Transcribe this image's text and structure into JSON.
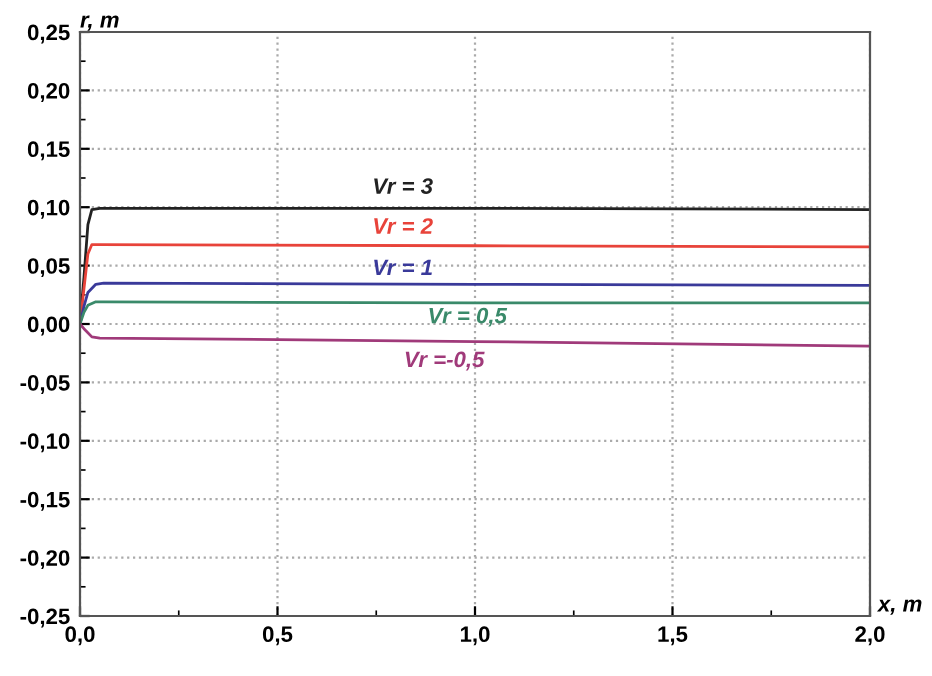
{
  "chart_data": {
    "type": "line",
    "xlabel": "x, m",
    "ylabel": "r, m",
    "xlim": [
      0,
      2
    ],
    "ylim": [
      -0.25,
      0.25
    ],
    "xticks": [
      {
        "value": 0,
        "label": "0,0"
      },
      {
        "value": 0.5,
        "label": "0,5"
      },
      {
        "value": 1,
        "label": "1,0"
      },
      {
        "value": 1.5,
        "label": "1,5"
      },
      {
        "value": 2,
        "label": "2,0"
      }
    ],
    "yticks": [
      {
        "value": -0.25,
        "label": "-0,25"
      },
      {
        "value": -0.2,
        "label": "-0,20"
      },
      {
        "value": -0.15,
        "label": "-0,15"
      },
      {
        "value": -0.1,
        "label": "-0,10"
      },
      {
        "value": -0.05,
        "label": "-0,05"
      },
      {
        "value": 0,
        "label": "0,00"
      },
      {
        "value": 0.05,
        "label": "0,05"
      },
      {
        "value": 0.1,
        "label": "0,10"
      },
      {
        "value": 0.15,
        "label": "0,15"
      },
      {
        "value": 0.2,
        "label": "0,20"
      },
      {
        "value": 0.25,
        "label": "0,25"
      }
    ],
    "grid": true,
    "legend": false,
    "marker": "none",
    "line_style": "solid",
    "series": [
      {
        "name": "Vr = 3",
        "color": "#222222",
        "x": [
          0,
          0.01,
          0.02,
          0.03,
          0.05,
          1,
          2
        ],
        "values": [
          0,
          0.04,
          0.085,
          0.098,
          0.099,
          0.099,
          0.098
        ]
      },
      {
        "name": "Vr = 2",
        "color": "#e8433a",
        "x": [
          0,
          0.01,
          0.02,
          0.03,
          0.05,
          1,
          2
        ],
        "values": [
          0,
          0.03,
          0.06,
          0.068,
          0.068,
          0.067,
          0.066
        ]
      },
      {
        "name": "Vr = 1",
        "color": "#3a3a9a",
        "x": [
          0,
          0.01,
          0.02,
          0.04,
          0.06,
          1,
          2
        ],
        "values": [
          0,
          0.015,
          0.027,
          0.034,
          0.035,
          0.034,
          0.033
        ]
      },
      {
        "name": "Vr = 0,5",
        "color": "#3a8a6a",
        "x": [
          0,
          0.01,
          0.02,
          0.04,
          0.06,
          1,
          2
        ],
        "values": [
          0,
          0.01,
          0.016,
          0.019,
          0.019,
          0.018,
          0.018
        ]
      },
      {
        "name": "Vr =-0,5",
        "color": "#a03a7a",
        "x": [
          0,
          0.01,
          0.03,
          0.05,
          1,
          2
        ],
        "values": [
          0,
          -0.004,
          -0.011,
          -0.012,
          -0.015,
          -0.019
        ]
      }
    ]
  }
}
